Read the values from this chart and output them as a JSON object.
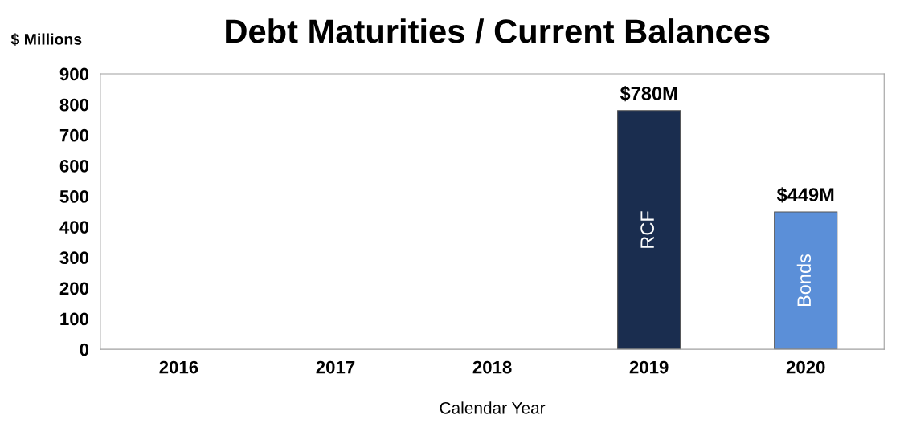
{
  "chart_data": {
    "type": "bar",
    "title": "Debt Maturities / Current Balances",
    "ylabel": "$ Millions",
    "xlabel": "Calendar Year",
    "categories": [
      "2016",
      "2017",
      "2018",
      "2019",
      "2020"
    ],
    "values": [
      null,
      null,
      null,
      780,
      449
    ],
    "colors": [
      "#1a2d4f",
      "#1a2d4f",
      "#1a2d4f",
      "#1a2d4f",
      "#5b8fd8"
    ],
    "value_labels": [
      null,
      null,
      null,
      "$780M",
      "$449M"
    ],
    "annotations": [
      "RCF",
      "Bonds"
    ],
    "ylim": [
      0,
      900
    ],
    "yticks": [
      0,
      100,
      200,
      300,
      400,
      500,
      600,
      700,
      800,
      900
    ],
    "grid": false,
    "legend": false
  }
}
